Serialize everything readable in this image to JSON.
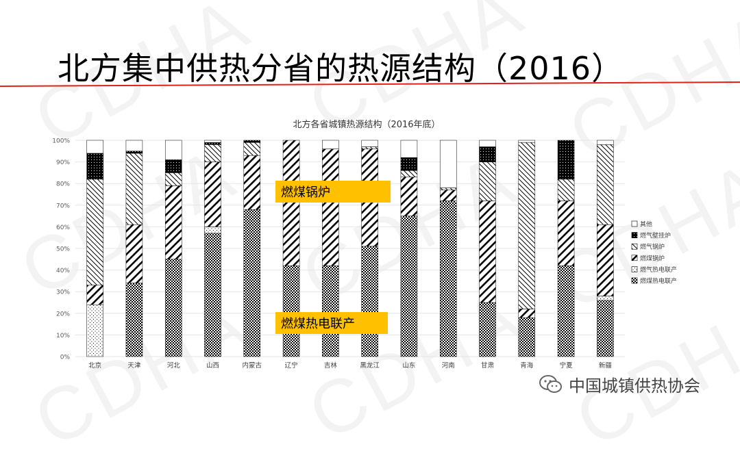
{
  "slide": {
    "title": "北方集中供热分省的热源结构（2016）",
    "accent_color": "#e0201b",
    "watermark_text": "CDHA",
    "brand_text": "中国城镇供热协会",
    "brand_icon": "wechat-icon"
  },
  "chart_data": {
    "type": "bar",
    "stacked": true,
    "title": "北方各省城镇热源结构（2016年底）",
    "categories": [
      "北京",
      "天津",
      "河北",
      "山西",
      "内蒙古",
      "辽宁",
      "吉林",
      "黑龙江",
      "山东",
      "河南",
      "甘肃",
      "青海",
      "宁夏",
      "新疆"
    ],
    "ylim": [
      0,
      100
    ],
    "yticks": [
      "0%",
      "10%",
      "20%",
      "30%",
      "40%",
      "50%",
      "60%",
      "70%",
      "80%",
      "90%",
      "100%"
    ],
    "legend_position": "right",
    "series": [
      {
        "name": "燃煤热电联产",
        "pattern": "dense-dots",
        "values": [
          0,
          34,
          45,
          57,
          68,
          42,
          42,
          51,
          65,
          72,
          25,
          18,
          42,
          26
        ]
      },
      {
        "name": "燃气热电联产",
        "pattern": "sparse-dots",
        "values": [
          24,
          0,
          0,
          3,
          0,
          0,
          0,
          0,
          0,
          0,
          0,
          0,
          0,
          2
        ]
      },
      {
        "name": "燃煤锅炉",
        "pattern": "wide-diagonal",
        "values": [
          9,
          27,
          34,
          30,
          25,
          58,
          54,
          45,
          18,
          5,
          47,
          4,
          30,
          33
        ]
      },
      {
        "name": "燃气锅炉",
        "pattern": "thin-diagonal",
        "values": [
          49,
          33,
          6,
          8,
          6,
          0,
          0,
          1,
          3,
          1,
          18,
          77,
          10,
          37
        ]
      },
      {
        "name": "燃气壁挂炉",
        "pattern": "black-dots",
        "values": [
          12,
          1,
          6,
          1,
          1,
          0,
          0,
          0,
          6,
          0,
          7,
          0,
          18,
          0
        ]
      },
      {
        "name": "其他",
        "pattern": "blank",
        "values": [
          6,
          5,
          9,
          1,
          0,
          0,
          4,
          3,
          8,
          22,
          3,
          1,
          0,
          2
        ]
      }
    ],
    "annotations": [
      {
        "text": "燃煤锅炉",
        "highlight_color": "#ffc000"
      },
      {
        "text": "燃煤热电联产",
        "highlight_color": "#ffc000"
      }
    ]
  }
}
